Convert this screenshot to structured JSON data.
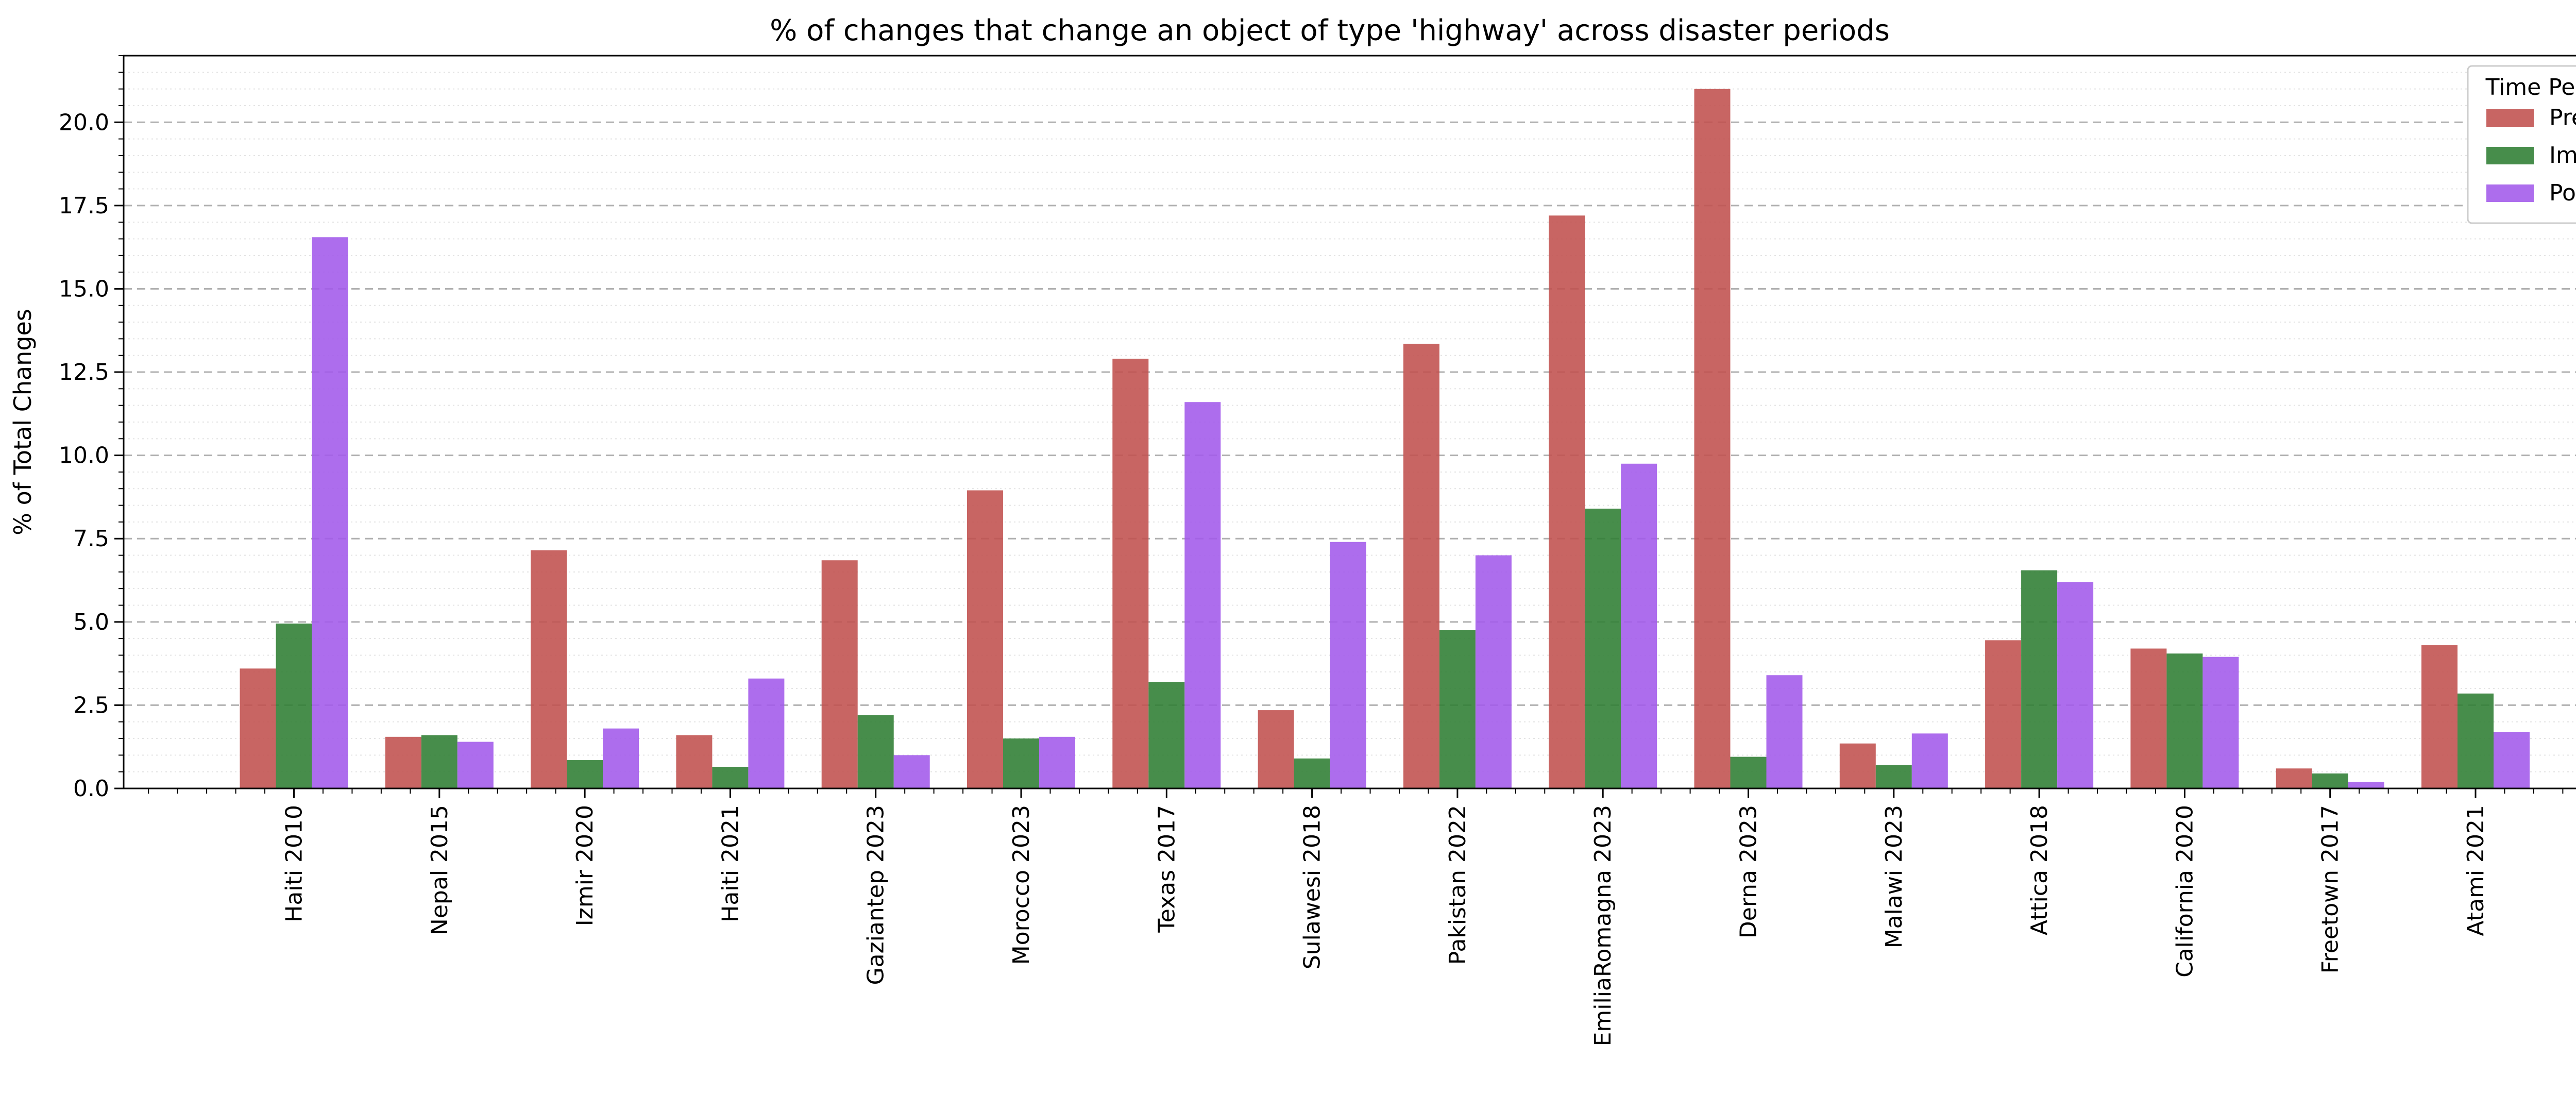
{
  "chart_data": {
    "type": "bar",
    "title": "% of changes that change an object of type 'highway' across disaster periods",
    "xlabel": "",
    "ylabel": "% of Total Changes",
    "ylim": [
      0,
      22
    ],
    "yticks": [
      "0.0",
      "2.5",
      "5.0",
      "7.5",
      "10.0",
      "12.5",
      "15.0",
      "17.5",
      "20.0"
    ],
    "grid": "horizontal dashed (major) and dotted (minor)",
    "legend": {
      "title": "Time Period",
      "placement": "top-right"
    },
    "categories": [
      "Haiti 2010",
      "Nepal 2015",
      "Izmir 2020",
      "Haiti 2021",
      "Gaziantep 2023",
      "Morocco 2023",
      "Texas 2017",
      "Sulawesi 2018",
      "Pakistan 2022",
      "EmiliaRomagna 2023",
      "Derna 2023",
      "Malawi 2023",
      "Attica 2018",
      "California 2020",
      "Freetown 2017",
      "Atami 2021"
    ],
    "series": [
      {
        "name": "Pre",
        "color": "#c0504d",
        "values": [
          3.6,
          1.55,
          7.15,
          1.6,
          6.85,
          8.95,
          12.9,
          2.35,
          13.35,
          17.2,
          21.0,
          1.35,
          4.45,
          4.2,
          0.6,
          4.3
        ]
      },
      {
        "name": "Imm",
        "color": "#2e7d32",
        "values": [
          4.95,
          1.6,
          0.85,
          0.65,
          2.2,
          1.5,
          3.2,
          0.9,
          4.75,
          8.4,
          0.95,
          0.7,
          6.55,
          4.05,
          0.45,
          2.85
        ]
      },
      {
        "name": "Post",
        "color": "#a259ea",
        "values": [
          16.55,
          1.4,
          1.8,
          3.3,
          1.0,
          1.55,
          11.6,
          7.4,
          7.0,
          9.75,
          3.4,
          1.65,
          6.2,
          3.95,
          0.2,
          1.7
        ]
      }
    ]
  }
}
